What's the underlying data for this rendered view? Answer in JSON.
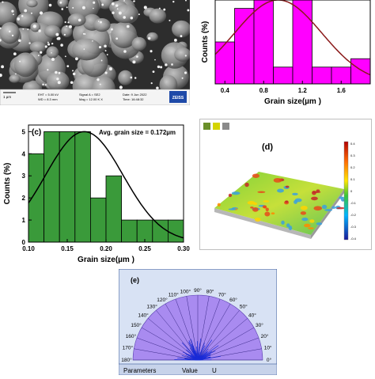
{
  "sem": {
    "scale_label": "1 µm",
    "eht": "EHT = 5.00 kV",
    "wd": "WD = 8.3 mm",
    "signal": "Signal A = SE2",
    "mag": "Mag = 12.00 K X",
    "date": "Date: 9 Jun 2022",
    "time": "Time: 16:48:32",
    "logo": "ZEISS"
  },
  "chart_data": [
    {
      "type": "bar",
      "panel": "",
      "x": [
        0.4,
        0.6,
        0.8,
        1.0,
        1.2,
        1.4,
        1.6,
        1.8
      ],
      "values": [
        5,
        9,
        10,
        2,
        10,
        2,
        2,
        3
      ],
      "xlabel": "Grain size(µm )",
      "ylabel": "Counts (%)",
      "xticks": [
        "0.4",
        "0.8",
        "1.2",
        "1.6"
      ],
      "xlim": [
        0.3,
        1.9
      ],
      "ylim": [
        0,
        10
      ],
      "fit": "normal",
      "fit_mean": 0.95,
      "fit_sd": 0.45,
      "bar_color": "#ff00ff",
      "curve_color": "#8b1a1a",
      "grid": false
    },
    {
      "type": "bar",
      "panel": "(c)",
      "annotation": "Avg. grain size = 0.172µm",
      "x": [
        0.11,
        0.13,
        0.15,
        0.17,
        0.19,
        0.21,
        0.23,
        0.25,
        0.27,
        0.29
      ],
      "values": [
        4,
        5,
        5,
        5,
        2,
        3,
        1,
        1,
        1,
        1
      ],
      "xlabel": "Grain size(µm )",
      "ylabel": "Counts (%)",
      "xticks": [
        "0.10",
        "0.15",
        "0.20",
        "0.25",
        "0.30"
      ],
      "yticks": [
        "0",
        "1",
        "2",
        "3",
        "4",
        "5"
      ],
      "xlim": [
        0.1,
        0.3
      ],
      "ylim": [
        0,
        5.3
      ],
      "fit": "normal",
      "fit_mean": 0.172,
      "fit_sd": 0.05,
      "bar_color": "#3a9a3a",
      "curve_color": "#000000",
      "grid": false
    }
  ],
  "afm": {
    "panel": "(d)",
    "colorbar_ticks": [
      "0.4",
      "0.3",
      "0.2",
      "0.1",
      "0",
      "-0.1",
      "-0.2",
      "-0.3",
      "-0.4"
    ]
  },
  "rose": {
    "panel": "(e)",
    "angle_labels": [
      "180°",
      "170°",
      "160°",
      "150°",
      "140°",
      "130°",
      "120°",
      "110°",
      "100°",
      "90°",
      "80°",
      "70°",
      "60°",
      "50°",
      "40°",
      "30°",
      "20°",
      "10°",
      "0°"
    ],
    "footer_parameters": "Parameters",
    "footer_value": "Value",
    "footer_unit": "U"
  },
  "colors": {
    "magenta": "#ff00ff",
    "green": "#3a9a3a",
    "rose_fill": "#a98bf0",
    "rose_lines": "#1a2bd6"
  }
}
